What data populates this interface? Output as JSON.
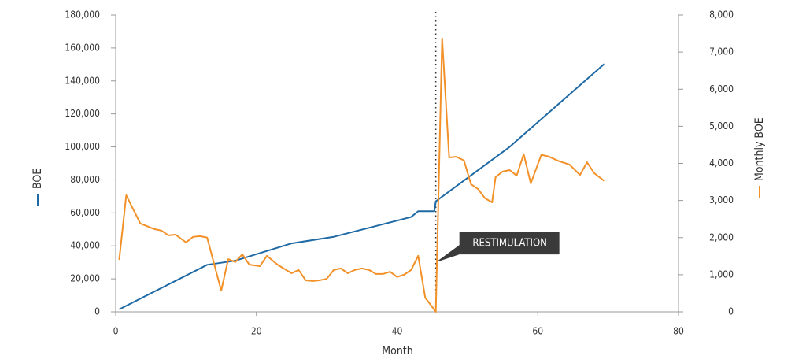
{
  "chart_data": {
    "type": "line",
    "x_label": "Month",
    "xlim": [
      0,
      80
    ],
    "xticks": [
      0,
      20,
      40,
      60,
      80
    ],
    "ylim": [
      0,
      180000
    ],
    "yticks": [
      0,
      {
        "value": 20000,
        "label": "20,000"
      },
      {
        "value": 40000,
        "label": "40,000"
      },
      {
        "value": 60000,
        "label": "60,000"
      },
      {
        "value": 80000,
        "label": "80,000"
      },
      {
        "value": 100000,
        "label": "100,000"
      },
      {
        "value": 120000,
        "label": "120,000"
      },
      {
        "value": 140000,
        "label": "140,000"
      },
      {
        "value": 160000,
        "label": "160,000"
      },
      {
        "value": 180000,
        "label": "180,000"
      }
    ],
    "y2lim": [
      0,
      8000
    ],
    "y2ticks": [
      0,
      {
        "value": 1000,
        "label": "1,000"
      },
      {
        "value": 2000,
        "label": "2,000"
      },
      {
        "value": 3000,
        "label": "3,000"
      },
      {
        "value": 4000,
        "label": "4,000"
      },
      {
        "value": 5000,
        "label": "5,000"
      },
      {
        "value": 6000,
        "label": "6,000"
      },
      {
        "value": 7000,
        "label": "7,000"
      },
      {
        "value": 8000,
        "label": "8,000"
      }
    ],
    "grid": false,
    "series": [
      {
        "name": "BOE",
        "color": "#1f6aa5",
        "x": [
          0.5,
          13,
          17,
          25,
          31,
          42,
          43,
          45.3,
          45.4,
          45.5,
          56,
          69.5
        ],
        "values": [
          1500,
          28500,
          31000,
          41500,
          45500,
          57500,
          61000,
          61000,
          64000,
          67000,
          100000,
          150500
        ]
      },
      {
        "name": "Monthly BOE",
        "color": "#f39129",
        "axis": "y2",
        "x": [
          0.5,
          1.5,
          3.5,
          5.5,
          6.5,
          7.5,
          8.5,
          10,
          11,
          12,
          13,
          15,
          16,
          17,
          18,
          19,
          20.5,
          21.5,
          23,
          25,
          26,
          27,
          28,
          29,
          30,
          31,
          32,
          33,
          34,
          35,
          36,
          37,
          38,
          39,
          40,
          41,
          42,
          43,
          44,
          45,
          45.5,
          46.4,
          47.4,
          48.4,
          49.5,
          50.5,
          51.5,
          52.5,
          53.5,
          54,
          55,
          56,
          57,
          58,
          59,
          60.5,
          61.5,
          63,
          64.5,
          66,
          67,
          68,
          69.5
        ],
        "values": [
          1400,
          3140,
          2380,
          2230,
          2190,
          2060,
          2080,
          1870,
          2020,
          2040,
          2000,
          570,
          1420,
          1340,
          1550,
          1270,
          1230,
          1510,
          1270,
          1040,
          1130,
          850,
          830,
          850,
          890,
          1130,
          1170,
          1040,
          1130,
          1170,
          1130,
          1020,
          1020,
          1080,
          940,
          1000,
          1130,
          1510,
          380,
          130,
          0,
          7370,
          4160,
          4180,
          4080,
          3440,
          3310,
          3060,
          2950,
          3630,
          3780,
          3820,
          3670,
          4250,
          3460,
          4230,
          4190,
          4060,
          3970,
          3690,
          4030,
          3740,
          3520
        ]
      }
    ],
    "annotations": [
      {
        "text": "RESTIMULATION",
        "x": 45.5,
        "y": 30000
      }
    ]
  }
}
